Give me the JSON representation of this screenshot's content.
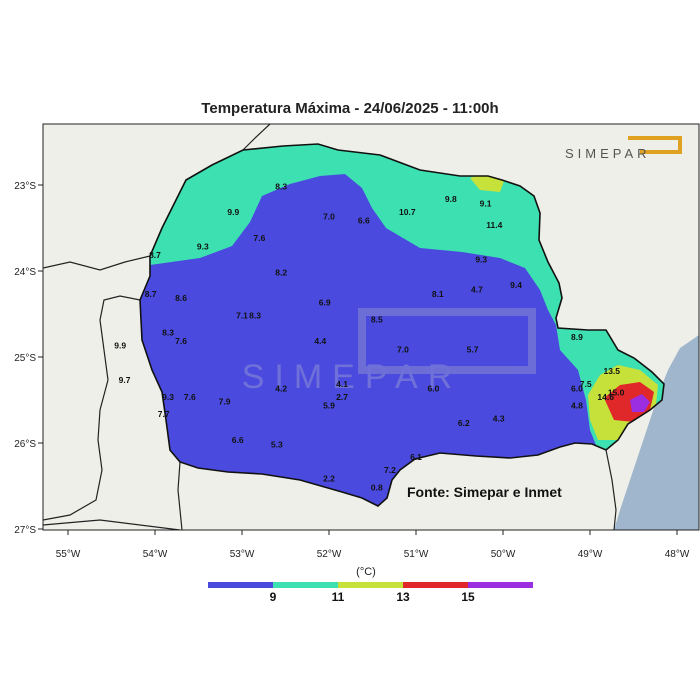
{
  "title": "Temperatura Máxima - 24/06/2025 - 11:00h",
  "source": "Fonte: Simepar e Inmet",
  "logo_text": "SIMEPAR",
  "watermark_text": "SIMEPAR",
  "colorbar": {
    "unit": "(°C)",
    "labels": [
      "9",
      "11",
      "13",
      "15"
    ],
    "colors": [
      "#4a4adf",
      "#3de0b0",
      "#c6e23a",
      "#e0282a",
      "#9b2ee0"
    ]
  },
  "axes": {
    "x_ticks": [
      "55°W",
      "54°W",
      "53°W",
      "52°W",
      "51°W",
      "50°W",
      "49°W",
      "48°W"
    ],
    "y_ticks": [
      "23°S",
      "24°S",
      "25°S",
      "26°S",
      "27°S"
    ]
  },
  "colors": {
    "land": "#efefe9",
    "ocean": "#9fb6cc",
    "border": "#111111"
  },
  "stations": [
    {
      "lon": -52.55,
      "lat": -23.05,
      "v": "8.3"
    },
    {
      "lon": -53.1,
      "lat": -23.35,
      "v": "9.9"
    },
    {
      "lon": -52.0,
      "lat": -23.4,
      "v": "7.0"
    },
    {
      "lon": -51.6,
      "lat": -23.45,
      "v": "6.6"
    },
    {
      "lon": -51.1,
      "lat": -23.35,
      "v": "10.7"
    },
    {
      "lon": -50.6,
      "lat": -23.2,
      "v": "9.8"
    },
    {
      "lon": -50.2,
      "lat": -23.25,
      "v": "9.1"
    },
    {
      "lon": -50.1,
      "lat": -23.5,
      "v": "11.4"
    },
    {
      "lon": -50.25,
      "lat": -23.9,
      "v": "9.3"
    },
    {
      "lon": -52.8,
      "lat": -23.65,
      "v": "7.6"
    },
    {
      "lon": -53.45,
      "lat": -23.75,
      "v": "9.3"
    },
    {
      "lon": -54.0,
      "lat": -23.85,
      "v": "8.7"
    },
    {
      "lon": -52.55,
      "lat": -24.05,
      "v": "8.2"
    },
    {
      "lon": -54.05,
      "lat": -24.3,
      "v": "8.7"
    },
    {
      "lon": -53.7,
      "lat": -24.35,
      "v": "8.6"
    },
    {
      "lon": -52.05,
      "lat": -24.4,
      "v": "6.9"
    },
    {
      "lon": -50.75,
      "lat": -24.3,
      "v": "8.1"
    },
    {
      "lon": -50.3,
      "lat": -24.25,
      "v": "4.7"
    },
    {
      "lon": -49.85,
      "lat": -24.2,
      "v": "9.4"
    },
    {
      "lon": -53.0,
      "lat": -24.55,
      "v": "7.1"
    },
    {
      "lon": -52.85,
      "lat": -24.55,
      "v": "8.3"
    },
    {
      "lon": -51.45,
      "lat": -24.6,
      "v": "8.5"
    },
    {
      "lon": -53.85,
      "lat": -24.75,
      "v": "8.3"
    },
    {
      "lon": -53.7,
      "lat": -24.85,
      "v": "7.6"
    },
    {
      "lon": -52.1,
      "lat": -24.85,
      "v": "4.4"
    },
    {
      "lon": -54.4,
      "lat": -24.9,
      "v": "9.9"
    },
    {
      "lon": -49.15,
      "lat": -24.8,
      "v": "8.9"
    },
    {
      "lon": -51.15,
      "lat": -24.95,
      "v": "7.0"
    },
    {
      "lon": -50.35,
      "lat": -24.95,
      "v": "5.7"
    },
    {
      "lon": -48.75,
      "lat": -25.2,
      "v": "13.5"
    },
    {
      "lon": -54.35,
      "lat": -25.3,
      "v": "9.7"
    },
    {
      "lon": -51.85,
      "lat": -25.35,
      "v": "4.1"
    },
    {
      "lon": -49.05,
      "lat": -25.35,
      "v": "7.5"
    },
    {
      "lon": -52.55,
      "lat": -25.4,
      "v": "4.2"
    },
    {
      "lon": -50.8,
      "lat": -25.4,
      "v": "6.0"
    },
    {
      "lon": -49.15,
      "lat": -25.4,
      "v": "6.0"
    },
    {
      "lon": -48.7,
      "lat": -25.45,
      "v": "15.0"
    },
    {
      "lon": -48.82,
      "lat": -25.5,
      "v": "14.6"
    },
    {
      "lon": -53.85,
      "lat": -25.5,
      "v": "9.3"
    },
    {
      "lon": -53.6,
      "lat": -25.5,
      "v": "7.6"
    },
    {
      "lon": -53.2,
      "lat": -25.55,
      "v": "7.9"
    },
    {
      "lon": -51.85,
      "lat": -25.5,
      "v": "2.7"
    },
    {
      "lon": -52.0,
      "lat": -25.6,
      "v": "5.9"
    },
    {
      "lon": -49.15,
      "lat": -25.6,
      "v": "4.8"
    },
    {
      "lon": -53.9,
      "lat": -25.7,
      "v": "7.7"
    },
    {
      "lon": -50.05,
      "lat": -25.75,
      "v": "4.3"
    },
    {
      "lon": -50.45,
      "lat": -25.8,
      "v": "6.2"
    },
    {
      "lon": -53.05,
      "lat": -26.0,
      "v": "6.6"
    },
    {
      "lon": -52.6,
      "lat": -26.05,
      "v": "5.3"
    },
    {
      "lon": -51.0,
      "lat": -26.2,
      "v": "6.1"
    },
    {
      "lon": -51.3,
      "lat": -26.35,
      "v": "7.2"
    },
    {
      "lon": -52.0,
      "lat": -26.45,
      "v": "2.2"
    },
    {
      "lon": -51.45,
      "lat": -26.55,
      "v": "0.8"
    }
  ]
}
